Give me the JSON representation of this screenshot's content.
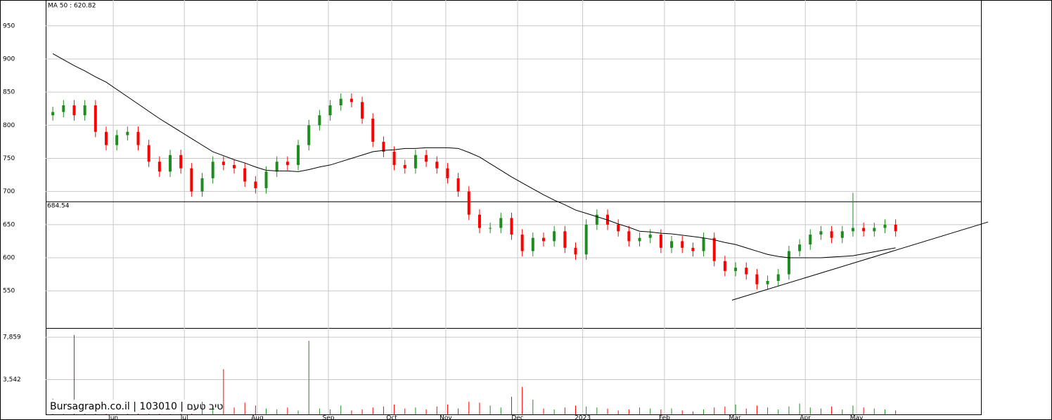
{
  "chart_data": {
    "type": "candlestick",
    "ma_label": "MA 50 : 620.82",
    "watermark": "Bursagraph.co.il | 103010 | טיב טעם",
    "up_color": "#1e8c1e",
    "down_color": "#ff0000",
    "grid": true,
    "xlim": [
      0,
      263
    ],
    "xticks": [
      {
        "value": 19,
        "label": "Jun"
      },
      {
        "value": 39,
        "label": "Jul"
      },
      {
        "value": 59.5,
        "label": "Aug"
      },
      {
        "value": 79.5,
        "label": "Sep"
      },
      {
        "value": 97.3,
        "label": "Oct"
      },
      {
        "value": 112.5,
        "label": "Nov"
      },
      {
        "value": 132.7,
        "label": "Dec"
      },
      {
        "value": 151,
        "label": "2023"
      },
      {
        "value": 174,
        "label": "Feb"
      },
      {
        "value": 193.8,
        "label": "Mar"
      },
      {
        "value": 213.6,
        "label": "Apr"
      },
      {
        "value": 228,
        "label": "May"
      }
    ],
    "ylim": [
      494,
      989
    ],
    "yticks": [
      550,
      600,
      650,
      700,
      750,
      800,
      850,
      900,
      950
    ],
    "x": [
      2,
      5,
      8,
      11,
      14,
      17,
      20,
      23,
      26,
      29,
      32,
      35,
      38,
      41,
      44,
      47,
      50,
      53,
      56,
      59,
      62,
      65,
      68,
      71,
      74,
      77,
      80,
      83,
      86,
      89,
      92,
      95,
      98,
      101,
      104,
      107,
      110,
      113,
      116,
      119,
      122,
      125,
      128,
      131,
      134,
      137,
      140,
      143,
      146,
      149,
      152,
      155,
      158,
      161,
      164,
      167,
      170,
      173,
      176,
      179,
      182,
      185,
      188,
      191,
      194,
      197,
      200,
      203,
      206,
      209,
      212,
      215,
      218,
      221,
      224,
      227,
      230,
      233,
      236,
      239
    ],
    "open": [
      815,
      820,
      830,
      815,
      830,
      790,
      770,
      785,
      790,
      770,
      745,
      730,
      755,
      735,
      700,
      720,
      745,
      740,
      735,
      715,
      705,
      730,
      745,
      740,
      770,
      800,
      815,
      830,
      840,
      835,
      810,
      775,
      760,
      740,
      735,
      755,
      745,
      735,
      720,
      700,
      665,
      645,
      645,
      660,
      635,
      610,
      630,
      625,
      640,
      615,
      605,
      650,
      665,
      650,
      640,
      625,
      630,
      635,
      615,
      625,
      615,
      610,
      630,
      595,
      580,
      585,
      575,
      560,
      565,
      575,
      610,
      620,
      635,
      640,
      630,
      640,
      645,
      640,
      645,
      650
    ],
    "high": [
      828,
      838,
      838,
      838,
      838,
      798,
      793,
      798,
      798,
      778,
      753,
      763,
      763,
      743,
      728,
      753,
      753,
      748,
      743,
      723,
      738,
      753,
      753,
      778,
      808,
      823,
      838,
      848,
      848,
      843,
      818,
      783,
      768,
      748,
      763,
      763,
      753,
      743,
      728,
      708,
      673,
      653,
      668,
      668,
      643,
      638,
      638,
      648,
      648,
      623,
      658,
      673,
      673,
      658,
      648,
      638,
      643,
      643,
      633,
      633,
      623,
      638,
      638,
      603,
      593,
      593,
      583,
      573,
      583,
      618,
      628,
      643,
      648,
      648,
      648,
      698,
      653,
      653,
      658,
      658
    ],
    "low": [
      807,
      812,
      807,
      807,
      782,
      762,
      762,
      777,
      762,
      737,
      722,
      722,
      727,
      692,
      692,
      712,
      732,
      727,
      707,
      697,
      697,
      722,
      732,
      732,
      762,
      792,
      807,
      822,
      827,
      802,
      767,
      752,
      732,
      727,
      727,
      737,
      727,
      712,
      692,
      657,
      637,
      637,
      637,
      627,
      602,
      602,
      617,
      617,
      607,
      597,
      597,
      642,
      642,
      632,
      617,
      617,
      622,
      607,
      607,
      607,
      602,
      602,
      587,
      572,
      572,
      567,
      552,
      552,
      557,
      567,
      602,
      612,
      627,
      622,
      622,
      632,
      632,
      632,
      637,
      632
    ],
    "close": [
      820,
      830,
      815,
      830,
      790,
      770,
      785,
      790,
      770,
      745,
      730,
      755,
      735,
      700,
      720,
      745,
      740,
      735,
      715,
      705,
      730,
      745,
      740,
      770,
      800,
      815,
      830,
      840,
      835,
      810,
      775,
      760,
      740,
      735,
      755,
      745,
      735,
      720,
      700,
      665,
      645,
      645,
      660,
      635,
      610,
      630,
      625,
      640,
      615,
      605,
      650,
      665,
      650,
      640,
      625,
      630,
      635,
      615,
      625,
      615,
      610,
      630,
      595,
      580,
      585,
      575,
      560,
      565,
      575,
      610,
      620,
      635,
      640,
      630,
      640,
      645,
      640,
      645,
      650,
      640
    ],
    "ma": {
      "color": "#000000",
      "values": [
        908,
        899,
        890,
        882,
        873,
        865,
        854,
        843,
        832,
        821,
        810,
        800,
        790,
        780,
        770,
        760,
        754,
        748,
        743,
        737,
        732,
        731,
        731,
        730,
        733,
        737,
        740,
        745,
        750,
        755,
        760,
        762,
        763,
        765,
        765,
        766,
        766,
        766,
        765,
        759,
        752,
        742,
        732,
        722,
        713,
        704,
        695,
        687,
        680,
        672,
        667,
        662,
        657,
        651,
        646,
        640,
        639,
        637,
        636,
        634,
        632,
        630,
        627,
        623,
        620,
        615,
        610,
        605,
        602,
        600,
        600,
        600,
        600,
        601,
        602,
        603,
        606,
        609,
        612,
        615
      ]
    },
    "hline": 684.54,
    "trendline": {
      "x": [
        193,
        265
      ],
      "y": [
        536,
        654
      ]
    },
    "volume": {
      "ylim": [
        0,
        8800
      ],
      "yticks": [
        {
          "value": 7859,
          "label": "7,859"
        },
        {
          "value": 3542,
          "label": "3,542"
        }
      ],
      "values": [
        1600,
        900,
        8100,
        400,
        1200,
        500,
        1000,
        600,
        1300,
        500,
        700,
        900,
        400,
        600,
        1300,
        800,
        4600,
        700,
        1200,
        900,
        600,
        500,
        700,
        400,
        7500,
        600,
        500,
        900,
        400,
        500,
        700,
        800,
        1000,
        600,
        700,
        500,
        800,
        1000,
        600,
        1300,
        1200,
        900,
        700,
        1800,
        2800,
        1500,
        600,
        500,
        700,
        900,
        800,
        700,
        600,
        400,
        500,
        700,
        600,
        500,
        600,
        400,
        300,
        500,
        700,
        800,
        1000,
        600,
        900,
        700,
        500,
        800,
        1100,
        700,
        600,
        800,
        500,
        900,
        700,
        600,
        500,
        400
      ]
    }
  }
}
